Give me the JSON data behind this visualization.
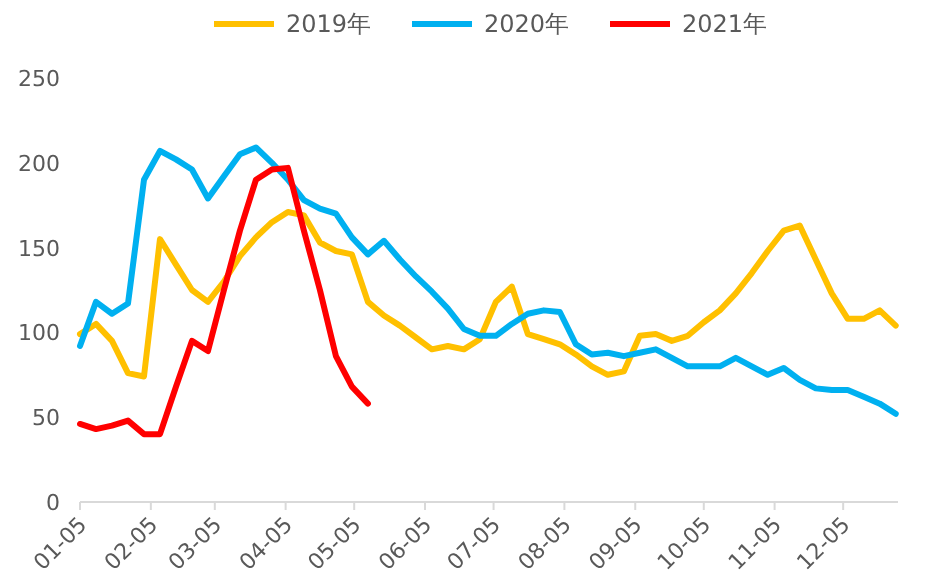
{
  "chart_data": {
    "type": "line",
    "x": [
      "--01-05",
      "--01-12",
      "--01-19",
      "--01-26",
      "--02-02",
      "--02-09",
      "--02-16",
      "--02-23",
      "--03-02",
      "--03-09",
      "--03-16",
      "--03-23",
      "--03-30",
      "--04-06",
      "--04-13",
      "--04-20",
      "--04-27",
      "--05-04",
      "--05-11",
      "--05-18",
      "--05-25",
      "--06-01",
      "--06-08",
      "--06-15",
      "--06-22",
      "--06-29",
      "--07-06",
      "--07-13",
      "--07-20",
      "--07-27",
      "--08-03",
      "--08-10",
      "--08-17",
      "--08-24",
      "--08-31",
      "--09-07",
      "--09-14",
      "--09-21",
      "--09-28",
      "--10-05",
      "--10-12",
      "--10-19",
      "--10-26",
      "--11-02",
      "--11-09",
      "--11-16",
      "--11-23",
      "--11-30",
      "--12-07",
      "--12-14",
      "--12-21",
      "--12-28"
    ],
    "series": [
      {
        "name": "2019年",
        "color": "#ffc000",
        "values": [
          99,
          105,
          95,
          76,
          74,
          155,
          140,
          125,
          118,
          130,
          145,
          156,
          165,
          171,
          169,
          153,
          148,
          146,
          118,
          110,
          104,
          97,
          90,
          92,
          90,
          96,
          118,
          127,
          99,
          96,
          93,
          87,
          80,
          75,
          77,
          98,
          99,
          95,
          98,
          106,
          113,
          123,
          135,
          148,
          160,
          163,
          143,
          123,
          108,
          108,
          113,
          104
        ]
      },
      {
        "name": "2020年",
        "color": "#00b0f0",
        "values": [
          92,
          118,
          111,
          117,
          190,
          207,
          202,
          196,
          179,
          192,
          205,
          209,
          200,
          190,
          178,
          173,
          170,
          156,
          146,
          154,
          143,
          133,
          124,
          114,
          102,
          98,
          98,
          105,
          111,
          113,
          112,
          93,
          87,
          88,
          86,
          88,
          90,
          85,
          80,
          80,
          80,
          85,
          80,
          75,
          79,
          72,
          67,
          66,
          66,
          62,
          58,
          52
        ]
      },
      {
        "name": "2021年",
        "color": "#ff0000",
        "values": [
          46,
          43,
          45,
          48,
          40,
          40,
          68,
          95,
          89,
          125,
          160,
          190,
          196,
          197,
          160,
          125,
          86,
          68,
          58,
          null,
          null,
          null,
          null,
          null,
          null,
          null,
          null,
          null,
          null,
          null,
          null,
          null,
          null,
          null,
          null,
          null,
          null,
          null,
          null,
          null,
          null,
          null,
          null,
          null,
          null,
          null,
          null,
          null,
          null,
          null,
          null,
          null
        ]
      }
    ],
    "xlim": [
      "--01-05",
      "--12-29"
    ],
    "xticks": [
      {
        "value": "--01-05",
        "label": "01-05"
      },
      {
        "value": "--02-05",
        "label": "02-05"
      },
      {
        "value": "--03-05",
        "label": "03-05"
      },
      {
        "value": "--04-05",
        "label": "04-05"
      },
      {
        "value": "--05-05",
        "label": "05-05"
      },
      {
        "value": "--06-05",
        "label": "06-05"
      },
      {
        "value": "--07-05",
        "label": "07-05"
      },
      {
        "value": "--08-05",
        "label": "08-05"
      },
      {
        "value": "--09-05",
        "label": "09-05"
      },
      {
        "value": "--10-05",
        "label": "10-05"
      },
      {
        "value": "--11-05",
        "label": "11-05"
      },
      {
        "value": "--12-05",
        "label": "12-05"
      }
    ],
    "ylim": [
      0,
      250
    ],
    "yticks": [
      0,
      50,
      100,
      150,
      200,
      250
    ],
    "grid": false,
    "legend": "top",
    "marker": "none",
    "line_style": "solid"
  }
}
